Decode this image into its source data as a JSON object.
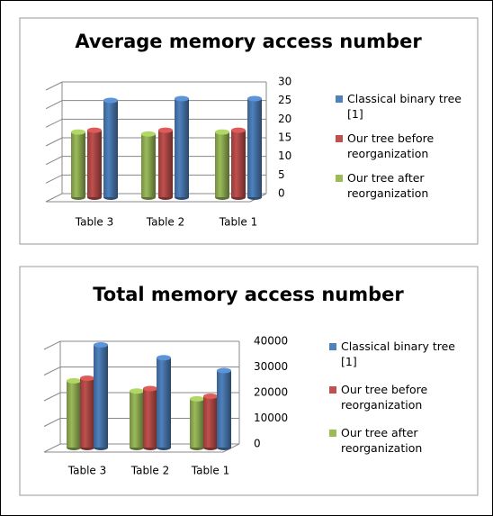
{
  "chart_data": [
    {
      "type": "bar",
      "title": "Average memory access number",
      "categories": [
        "Table 3",
        "Table 2",
        "Table 1"
      ],
      "series": [
        {
          "name": "Our tree after reorganization",
          "color": "#9bbb59",
          "values": [
            17.5,
            17,
            17.5
          ]
        },
        {
          "name": "Our tree before reorganization",
          "color": "#c0504d",
          "values": [
            18,
            18,
            18
          ]
        },
        {
          "name": "Classical binary tree [1]",
          "color": "#4f81bd",
          "values": [
            26,
            26.5,
            26.5
          ]
        }
      ],
      "ylim": [
        0,
        30
      ],
      "yticks": [
        0,
        5,
        10,
        15,
        20,
        25,
        30
      ],
      "grid": true,
      "legend": "right"
    },
    {
      "type": "bar",
      "title": "Total memory access number",
      "categories": [
        "Table 3",
        "Table 2",
        "Table 1"
      ],
      "series": [
        {
          "name": "Our tree after reorganization",
          "color": "#9bbb59",
          "values": [
            26000,
            22000,
            19000
          ]
        },
        {
          "name": "Our tree before reorganization",
          "color": "#c0504d",
          "values": [
            27000,
            23000,
            20000
          ]
        },
        {
          "name": "Classical binary tree [1]",
          "color": "#4f81bd",
          "values": [
            40000,
            35000,
            30000
          ]
        }
      ],
      "ylim": [
        0,
        40000
      ],
      "yticks": [
        0,
        10000,
        20000,
        30000,
        40000
      ],
      "grid": true,
      "legend": "right"
    }
  ]
}
